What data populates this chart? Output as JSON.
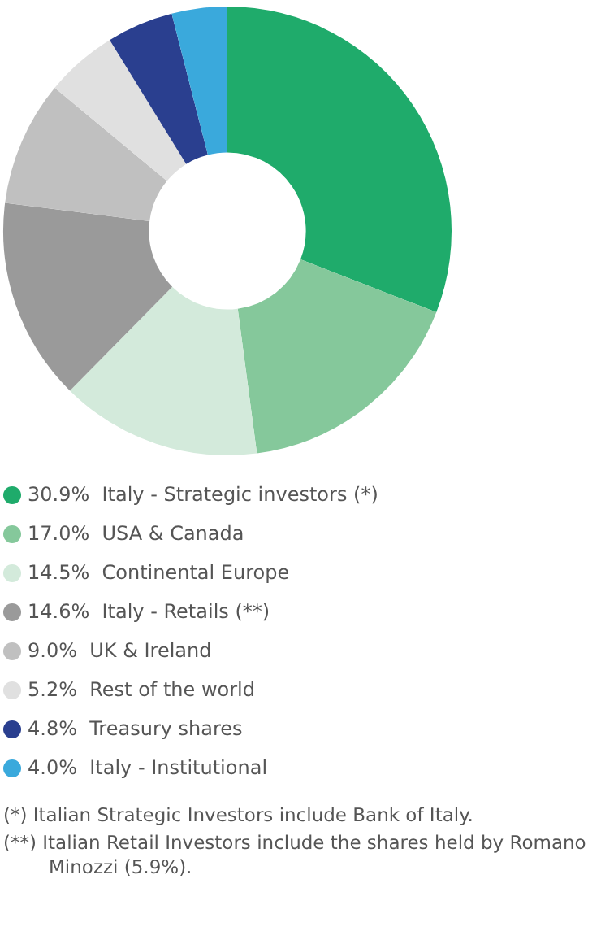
{
  "chart_data": {
    "type": "donut",
    "categories": [
      "Italy - Strategic investors (*)",
      "USA & Canada",
      "Continental Europe",
      "Italy - Retails (**)",
      "UK & Ireland",
      "Rest of the world",
      "Treasury shares",
      "Italy - Institutional"
    ],
    "values": [
      30.9,
      17.0,
      14.5,
      14.6,
      9.0,
      5.2,
      4.8,
      4.0
    ],
    "value_labels": [
      "30.9%",
      "17.0%",
      "14.5%",
      "14.6%",
      "9.0%",
      "5.2%",
      "4.8%",
      "4.0%"
    ],
    "colors": [
      "#1fab6b",
      "#85c89b",
      "#d3eadb",
      "#9a9a9a",
      "#c0c0c0",
      "#e0e0e0",
      "#2a3f8f",
      "#3aa9dc"
    ],
    "legend": "bottom",
    "annotations": [
      "(*) Italian Strategic Investors include Bank of Italy.",
      "(**) Italian Retail Investors include the shares held by Romano Minozzi (5.9%)."
    ]
  }
}
